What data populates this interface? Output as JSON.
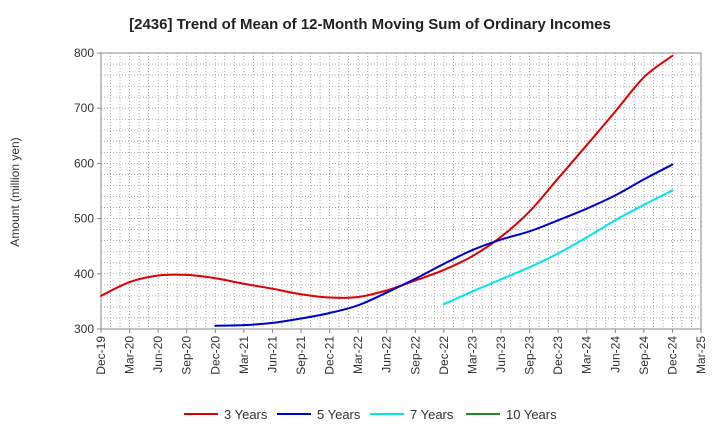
{
  "chart_data": {
    "type": "line",
    "title": "[2436]  Trend of Mean of 12-Month Moving Sum of Ordinary Incomes",
    "xlabel": "",
    "ylabel": "Amount (million yen)",
    "ylim": [
      300,
      800
    ],
    "yticks": [
      300,
      400,
      500,
      600,
      700,
      800
    ],
    "grid": true,
    "legend_position": "bottom",
    "categories": [
      "Dec-19",
      "Mar-20",
      "Jun-20",
      "Sep-20",
      "Dec-20",
      "Mar-21",
      "Jun-21",
      "Sep-21",
      "Dec-21",
      "Mar-22",
      "Jun-22",
      "Sep-22",
      "Dec-22",
      "Mar-23",
      "Jun-23",
      "Sep-23",
      "Dec-23",
      "Mar-24",
      "Jun-24",
      "Sep-24",
      "Dec-24",
      "Mar-25"
    ],
    "series": [
      {
        "name": "3 Years",
        "color": "#dd0000",
        "values": [
          360,
          385,
          397,
          398,
          392,
          382,
          373,
          363,
          357,
          358,
          370,
          388,
          407,
          432,
          467,
          513,
          573,
          633,
          694,
          756,
          795,
          null
        ]
      },
      {
        "name": "5 Years",
        "color": "#0000cc",
        "values": [
          null,
          null,
          null,
          null,
          306,
          307,
          311,
          319,
          329,
          343,
          366,
          391,
          418,
          443,
          462,
          477,
          497,
          518,
          542,
          571,
          598,
          null
        ]
      },
      {
        "name": "7 Years",
        "color": "#00e5ee",
        "values": [
          null,
          null,
          null,
          null,
          null,
          null,
          null,
          null,
          null,
          null,
          null,
          null,
          345,
          368,
          390,
          412,
          437,
          466,
          497,
          525,
          551,
          null
        ]
      },
      {
        "name": "10 Years",
        "color": "#228b22",
        "values": [
          null,
          null,
          null,
          null,
          null,
          null,
          null,
          null,
          null,
          null,
          null,
          null,
          null,
          null,
          null,
          null,
          null,
          null,
          null,
          null,
          null,
          null
        ]
      }
    ]
  }
}
